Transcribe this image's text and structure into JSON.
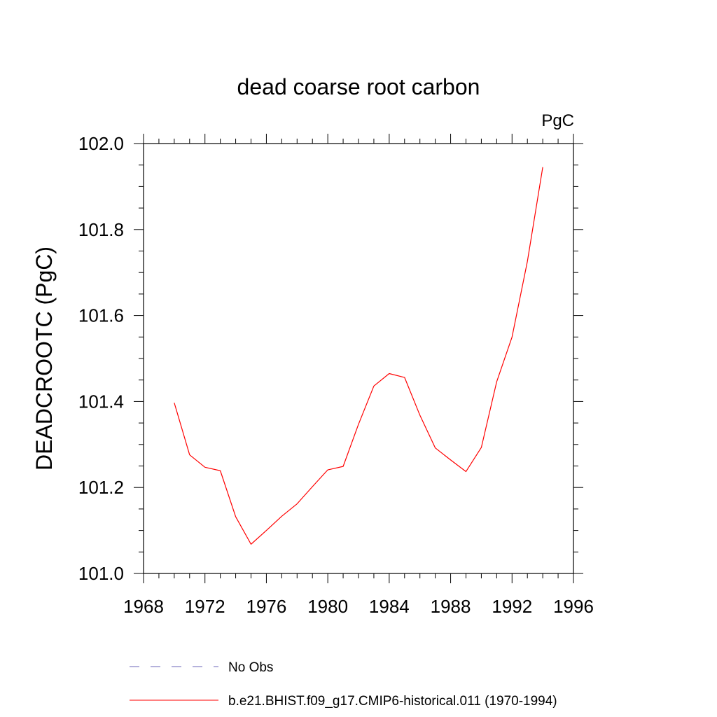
{
  "chart_data": {
    "type": "line",
    "title": "dead coarse root carbon",
    "units": "PgC",
    "ylabel": "DEADCROOTC  (PgC)",
    "xlabel": "",
    "xlim": [
      1968,
      1996
    ],
    "ylim": [
      101.0,
      102.0
    ],
    "x_ticks": [
      1968,
      1972,
      1976,
      1980,
      1984,
      1988,
      1992,
      1996
    ],
    "x_tick_labels": [
      "1968",
      "1972",
      "1976",
      "1980",
      "1984",
      "1988",
      "1992",
      "1996"
    ],
    "y_ticks": [
      101.0,
      101.2,
      101.4,
      101.6,
      101.8,
      102.0
    ],
    "y_tick_labels": [
      "101.0",
      "101.2",
      "101.4",
      "101.6",
      "101.8",
      "102.0"
    ],
    "grid": false,
    "legend_position": "bottom",
    "legend": [
      {
        "label": "No Obs",
        "color": "#6b66b8",
        "dash": "dashed"
      },
      {
        "label": "b.e21.BHIST.f09_g17.CMIP6-historical.011 (1970-1994)",
        "color": "#ff0000",
        "dash": "solid"
      }
    ],
    "series": [
      {
        "name": "b.e21.BHIST.f09_g17.CMIP6-historical.011 (1970-1994)",
        "color": "#ff0000",
        "x": [
          1970,
          1971,
          1972,
          1973,
          1974,
          1975,
          1976,
          1977,
          1978,
          1979,
          1980,
          1981,
          1982,
          1983,
          1984,
          1985,
          1986,
          1987,
          1988,
          1989,
          1990,
          1991,
          1992,
          1993,
          1994
        ],
        "values": [
          101.397,
          101.276,
          101.247,
          101.239,
          101.132,
          101.068,
          101.1,
          101.133,
          101.162,
          101.202,
          101.241,
          101.249,
          101.347,
          101.436,
          101.465,
          101.456,
          101.368,
          101.292,
          101.264,
          101.237,
          101.293,
          101.446,
          101.55,
          101.726,
          101.945
        ]
      }
    ]
  }
}
